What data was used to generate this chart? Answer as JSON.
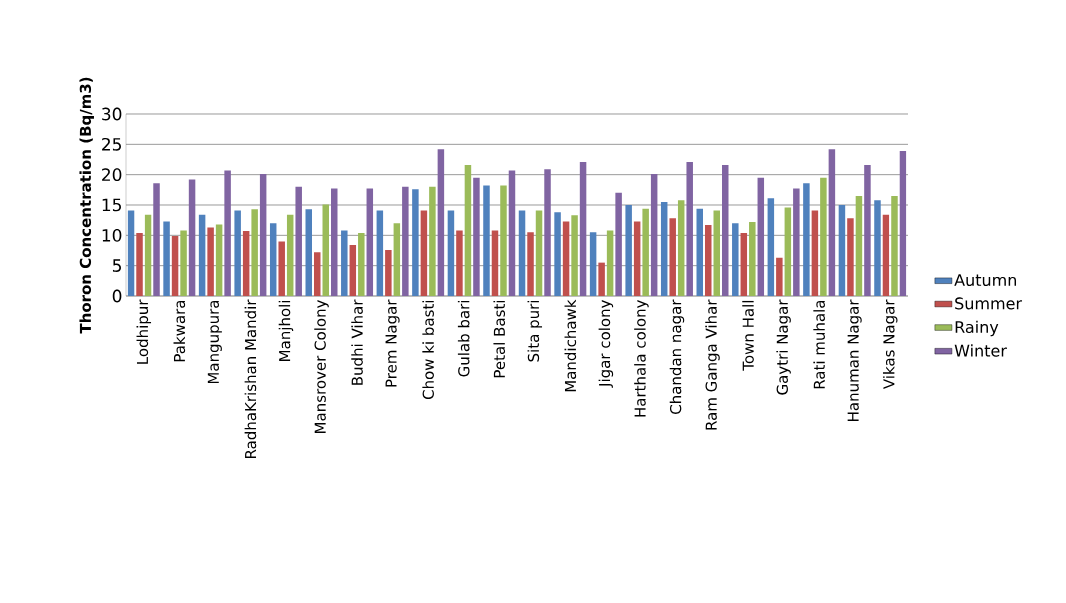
{
  "chart_data": {
    "type": "bar",
    "ylabel": "Thoron Concentration (Bq/m3)",
    "categories": [
      "Lodhipur",
      "Pakwara",
      "Mangupura",
      "RadhaKrishan Mandir",
      "Manjholi",
      "Mansrover Colony",
      "Budhi Vihar",
      "Prem Nagar",
      "Chow ki basti",
      "Gulab bari",
      "Petal Basti",
      "Sita puri",
      "Mandichawk",
      "Jigar colony",
      "Harthala colony",
      "Chandan nagar",
      "Ram Ganga  Vihar",
      "Town Hall",
      "Gaytri Nagar",
      "Rati muhala",
      "Hanuman Nagar",
      "Vikas Nagar"
    ],
    "series": [
      {
        "name": "Autumn",
        "color": "#4f81bd",
        "values": [
          14.1,
          12.3,
          13.4,
          14.1,
          12.0,
          14.3,
          10.8,
          14.1,
          17.6,
          14.1,
          18.2,
          14.1,
          13.8,
          10.5,
          15.0,
          15.5,
          14.4,
          12.0,
          16.1,
          18.6,
          15.0,
          15.8
        ]
      },
      {
        "name": "Summer",
        "color": "#c0504d",
        "values": [
          10.4,
          9.9,
          11.3,
          10.7,
          9.0,
          7.2,
          8.4,
          7.6,
          14.1,
          10.8,
          10.8,
          10.5,
          12.3,
          5.5,
          12.3,
          12.8,
          11.7,
          10.4,
          6.3,
          14.1,
          12.8,
          13.4
        ]
      },
      {
        "name": "Rainy",
        "color": "#9bbb59",
        "values": [
          13.4,
          10.8,
          11.8,
          14.3,
          13.4,
          15.1,
          10.4,
          12.0,
          18.0,
          21.6,
          18.2,
          14.1,
          13.3,
          10.8,
          14.4,
          15.8,
          14.1,
          12.2,
          14.6,
          19.5,
          16.5,
          16.5
        ]
      },
      {
        "name": "Winter",
        "color": "#8064a2",
        "values": [
          18.6,
          19.2,
          20.7,
          20.1,
          18.0,
          17.7,
          17.7,
          18.0,
          24.2,
          19.5,
          20.7,
          20.9,
          22.1,
          17.0,
          20.1,
          22.1,
          21.6,
          19.5,
          17.7,
          24.2,
          21.6,
          23.9
        ]
      }
    ],
    "ylim": [
      0,
      30
    ],
    "yticks": [
      0,
      5,
      10,
      15,
      20,
      25,
      30
    ],
    "grid": "y",
    "legend": "right"
  }
}
